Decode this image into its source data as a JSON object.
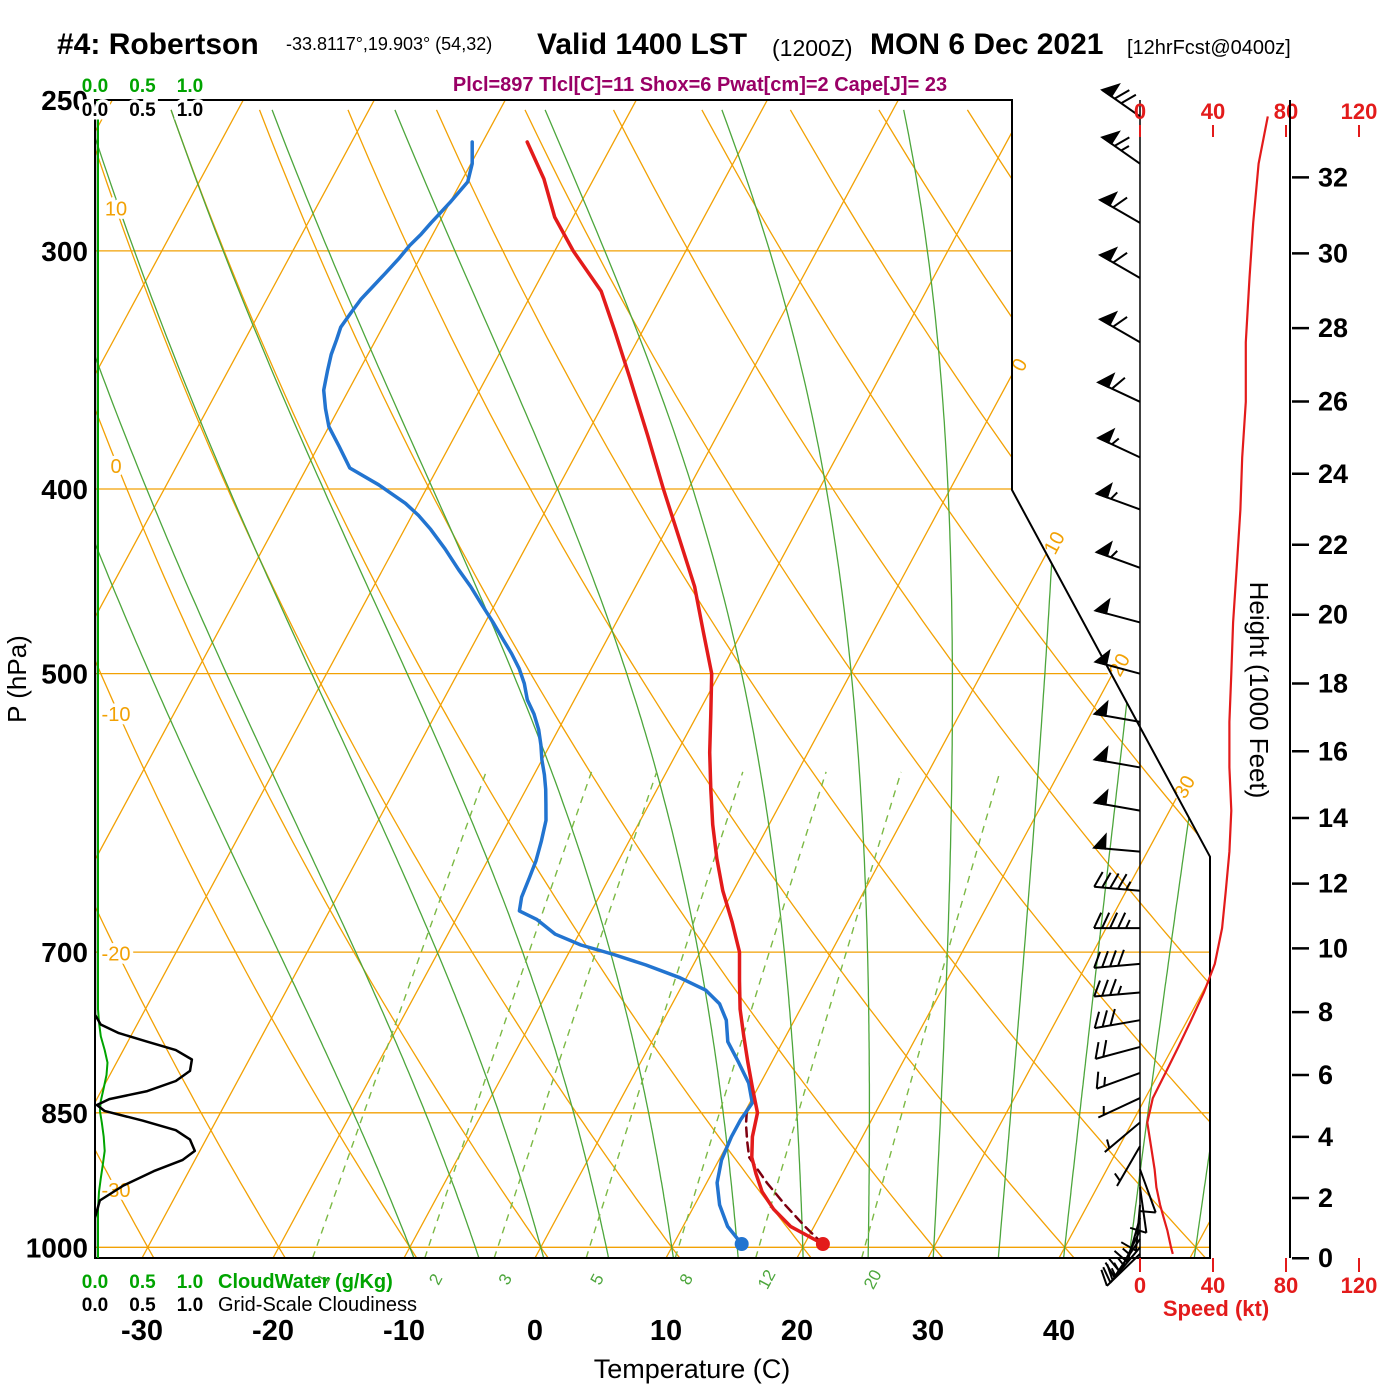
{
  "header": {
    "station": "#4: Robertson",
    "coords": "-33.8117°,19.903° (54,32)",
    "valid_main": "Valid 1400 LST",
    "valid_z": "(1200Z)",
    "valid_date": "MON 6 Dec 2021",
    "valid_fcst": "[12hrFcst@0400z]",
    "indices": "Plcl=897 Tlcl[C]=11 Shox=6 Pwat[cm]=2 Cape[J]= 23"
  },
  "axes": {
    "pressure_label": "P (hPa)",
    "pressure_ticks": [
      250,
      300,
      400,
      500,
      700,
      850,
      1000
    ],
    "temp_label": "Temperature (C)",
    "temp_ticks": [
      -30,
      -20,
      -10,
      0,
      10,
      20,
      30,
      40
    ],
    "height_label": "Height (1000 Feet)",
    "height_ticks": [
      0,
      2,
      4,
      6,
      8,
      10,
      12,
      14,
      16,
      18,
      20,
      22,
      24,
      26,
      28,
      30,
      32
    ],
    "speed_label": "Speed (kt)",
    "speed_ticks": [
      0,
      40,
      80,
      120
    ],
    "cloud_scale": [
      "0.0",
      "0.5",
      "1.0"
    ],
    "cloudwater_label": "CloudWater (g/Kg)",
    "cloudiness_label": "Grid-Scale Cloudiness"
  },
  "colors": {
    "grid_orange": "#F2A104",
    "adiabat_green": "#4DA63C",
    "mixing_green": "#7CB944",
    "cloud_green": "#00A400",
    "temp_red": "#E31B1B",
    "dewpoint_blue": "#2274D0",
    "parcel_maroon": "#7E0010",
    "speed_red": "#E31B1B",
    "indices_purple": "#990066"
  },
  "chart_data": {
    "type": "skewt-sounding",
    "isotherms_c": {
      "min": -80,
      "max": 50,
      "step": 10,
      "labeled": [
        0,
        10,
        20,
        30
      ]
    },
    "dry_adiabats_c": {
      "min": -30,
      "max": 130,
      "step": 10,
      "labeled": [
        10,
        0,
        -10,
        -20,
        -30
      ]
    },
    "moist_adiabats_c": [
      -10,
      -5,
      0,
      5,
      10,
      15,
      20,
      25,
      30,
      35,
      40,
      45,
      50
    ],
    "mixing_ratio_g_kg": [
      1,
      2,
      3,
      5,
      8,
      12,
      20
    ],
    "temperature_profile": {
      "pressure_hpa": [
        996,
        975,
        955,
        935,
        915,
        897,
        875,
        850,
        825,
        800,
        775,
        750,
        725,
        700,
        675,
        650,
        625,
        600,
        575,
        550,
        525,
        500,
        475,
        450,
        425,
        400,
        375,
        350,
        330,
        315,
        300,
        288,
        275,
        263
      ],
      "temp_c": [
        21.4,
        18.2,
        16.2,
        14.6,
        13.4,
        12.4,
        11.6,
        11.0,
        9.6,
        8.2,
        6.8,
        5.4,
        4.2,
        3.0,
        1.2,
        -0.8,
        -2.6,
        -4.3,
        -5.9,
        -7.5,
        -9.0,
        -10.6,
        -13.0,
        -15.5,
        -18.6,
        -21.9,
        -25.3,
        -29.0,
        -32.2,
        -34.8,
        -38.6,
        -41.4,
        -43.8,
        -46.6
      ]
    },
    "dewpoint_profile": {
      "pressure_hpa": [
        996,
        975,
        950,
        925,
        900,
        875,
        857,
        840,
        820,
        800,
        780,
        760,
        745,
        733,
        722,
        711,
        702,
        694,
        685,
        673,
        666,
        655,
        640,
        627,
        612,
        597,
        585,
        575,
        565,
        555,
        545,
        535,
        525,
        516,
        506,
        497,
        488,
        480,
        470,
        460,
        450,
        441,
        430,
        420,
        413,
        407,
        398,
        390,
        380,
        371,
        363,
        355,
        347,
        340,
        334,
        329,
        323,
        318,
        313,
        308,
        303,
        298,
        294,
        290,
        283,
        276,
        270,
        263
      ],
      "temp_c": [
        15.2,
        13.4,
        11.9,
        10.8,
        10.2,
        10.0,
        10.0,
        10.2,
        9.1,
        7.5,
        5.8,
        4.8,
        3.6,
        2.0,
        -0.5,
        -3.6,
        -6.5,
        -9.4,
        -11.8,
        -13.8,
        -15.5,
        -15.9,
        -16.1,
        -16.3,
        -16.7,
        -17.2,
        -17.9,
        -18.5,
        -19.2,
        -20.0,
        -20.7,
        -21.5,
        -22.5,
        -23.6,
        -24.5,
        -25.5,
        -26.7,
        -27.9,
        -29.4,
        -31.0,
        -32.6,
        -34.2,
        -36.1,
        -38.0,
        -39.5,
        -41.0,
        -43.8,
        -46.7,
        -48.4,
        -50.0,
        -51.0,
        -51.9,
        -52.4,
        -52.8,
        -53.0,
        -53.2,
        -53.0,
        -52.8,
        -52.4,
        -52.0,
        -51.6,
        -51.3,
        -50.9,
        -50.6,
        -50.0,
        -49.5,
        -49.9,
        -50.8
      ]
    },
    "parcel_trace": {
      "pressure_hpa": [
        996,
        975,
        950,
        925,
        897,
        880,
        862,
        845
      ],
      "temp_c": [
        21.4,
        19.3,
        16.9,
        14.6,
        12.2,
        11.4,
        10.6,
        10.0
      ]
    },
    "surface_temp_point": {
      "pressure_hpa": 996,
      "temp_c": 21.4
    },
    "surface_dewpoint_point": {
      "pressure_hpa": 996,
      "temp_c": 15.2
    },
    "cloudiness_profile": {
      "pressure_hpa": [
        1013,
        965,
        945,
        928,
        912,
        900,
        890,
        878,
        868,
        858,
        848,
        842,
        836,
        828,
        818,
        808,
        797,
        788,
        780,
        772,
        764,
        755,
        600,
        250
      ],
      "fraction": [
        0,
        0,
        0.05,
        0.3,
        0.62,
        0.92,
        1.05,
        1.0,
        0.85,
        0.5,
        0.1,
        0.02,
        0.15,
        0.55,
        0.85,
        1.0,
        1.02,
        0.85,
        0.55,
        0.25,
        0.06,
        0,
        0,
        0
      ]
    },
    "cloudwater_profile": {
      "pressure_hpa": [
        1013,
        955,
        935,
        920,
        905,
        890,
        875,
        860,
        848,
        838,
        825,
        812,
        800,
        788,
        775,
        762,
        750,
        250
      ],
      "g_per_kg": [
        0,
        0,
        0.01,
        0.03,
        0.05,
        0.07,
        0.06,
        0.04,
        0.02,
        0.03,
        0.06,
        0.09,
        0.1,
        0.07,
        0.03,
        0.01,
        0,
        0
      ]
    },
    "winds": {
      "pressure_hpa": [
        255,
        270,
        290,
        310,
        335,
        360,
        385,
        410,
        440,
        470,
        500,
        530,
        560,
        590,
        620,
        650,
        680,
        710,
        735,
        760,
        785,
        810,
        835,
        860,
        885,
        910,
        930,
        950,
        965,
        980,
        990,
        1000,
        1008
      ],
      "dir_deg": [
        305,
        305,
        300,
        300,
        300,
        295,
        295,
        290,
        290,
        285,
        285,
        280,
        280,
        280,
        275,
        275,
        270,
        265,
        265,
        260,
        255,
        250,
        245,
        230,
        210,
        160,
        172,
        185,
        196,
        206,
        214,
        220,
        226
      ],
      "speed_kt": [
        70,
        65,
        62,
        60,
        58,
        58,
        56,
        55,
        53,
        51,
        50,
        49,
        49,
        50,
        49,
        47,
        45,
        41,
        35,
        28,
        21,
        14,
        7,
        4,
        6,
        8,
        9,
        11,
        13,
        15,
        16,
        17,
        18
      ]
    }
  }
}
